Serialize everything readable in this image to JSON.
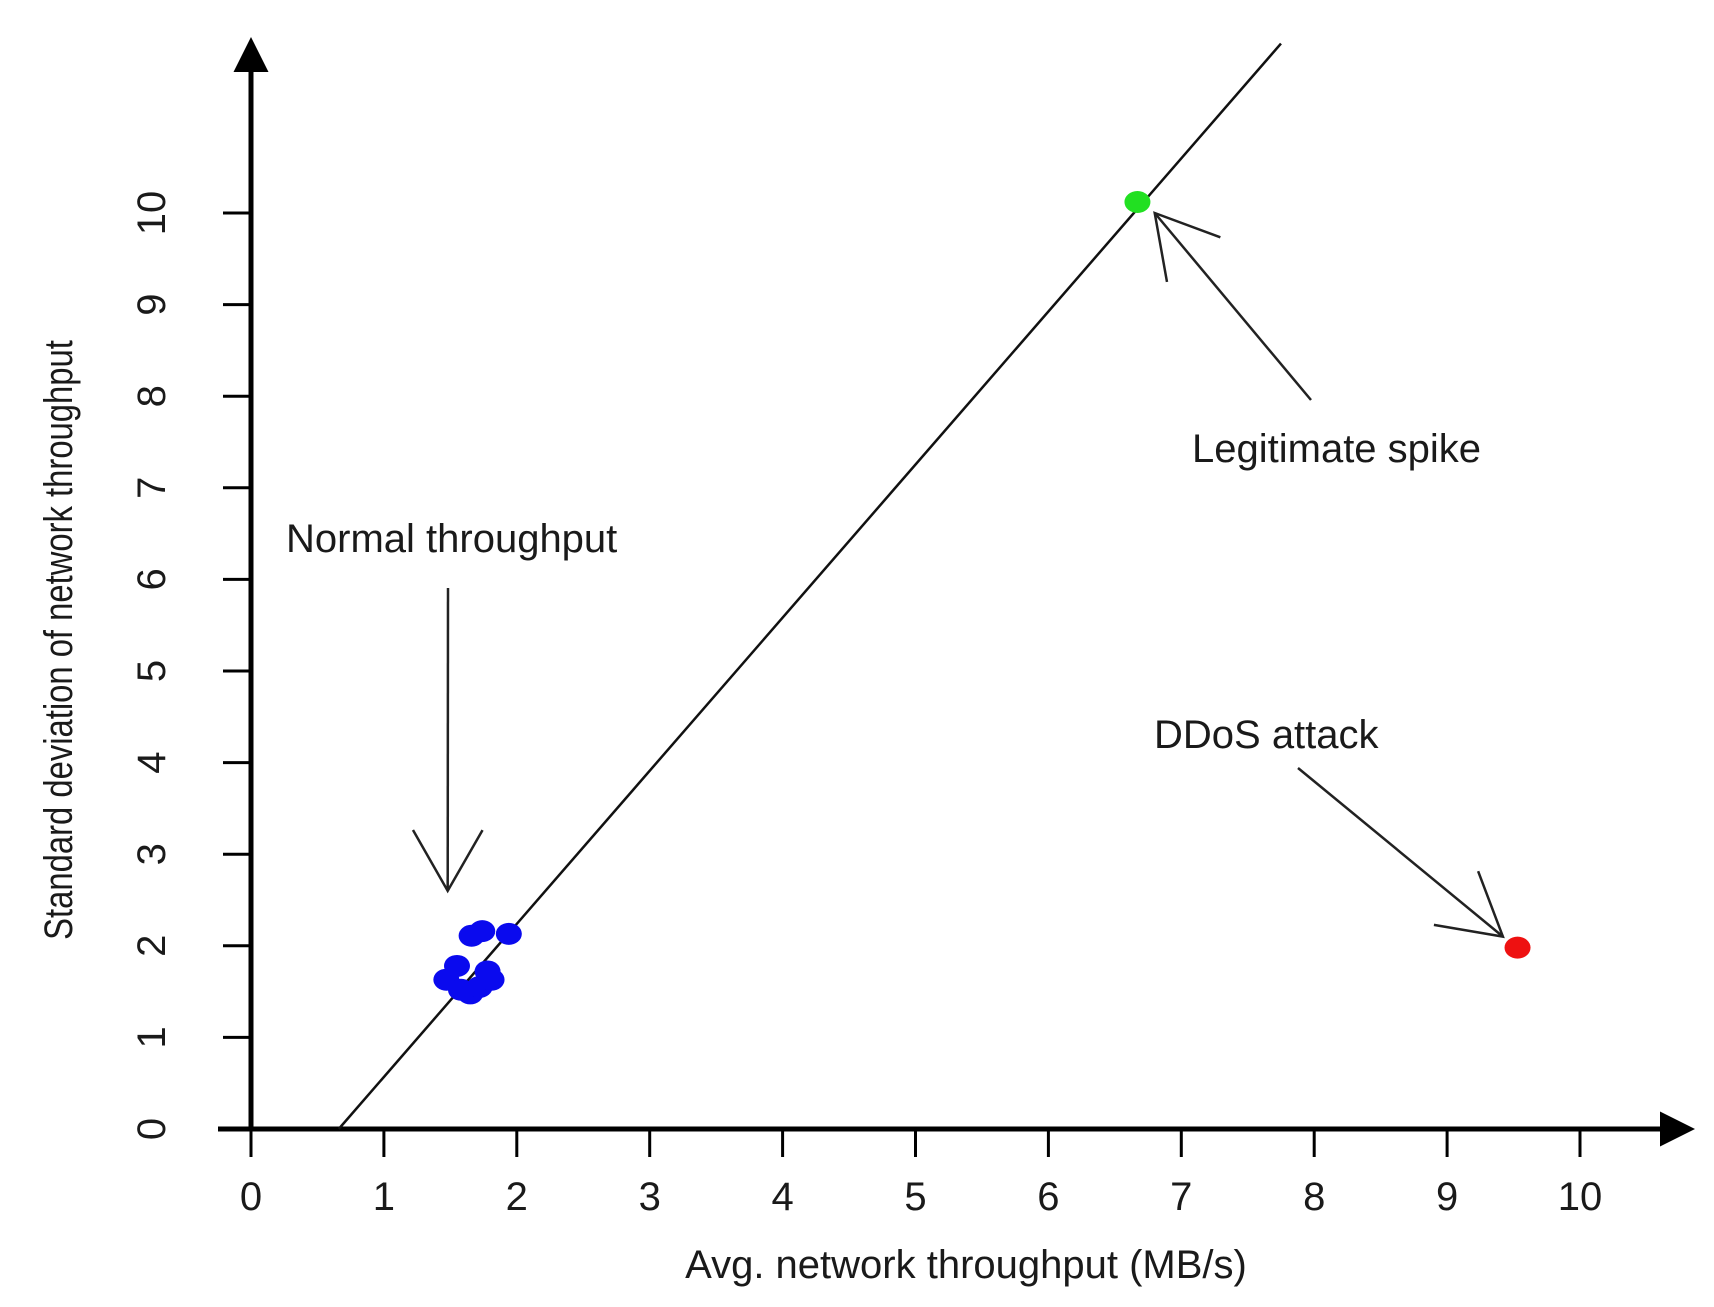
{
  "chart_data": {
    "type": "scatter",
    "title": "",
    "xlabel": "Avg. network throughput (MB/s)",
    "ylabel": "Standard deviation of network throughput",
    "xlim": [
      0,
      10
    ],
    "ylim": [
      0,
      10
    ],
    "x_ticks": [
      "0",
      "1",
      "2",
      "3",
      "4",
      "5",
      "6",
      "7",
      "8",
      "9",
      "10"
    ],
    "y_ticks": [
      "0",
      "1",
      "2",
      "3",
      "4",
      "5",
      "6",
      "7",
      "8",
      "9",
      "10"
    ],
    "grid": false,
    "legend": "none",
    "series": [
      {
        "color": "#0a0aee",
        "points": [
          {
            "x": 1.47,
            "y": 1.63
          },
          {
            "x": 1.55,
            "y": 1.78
          },
          {
            "x": 1.58,
            "y": 1.52
          },
          {
            "x": 1.65,
            "y": 1.48
          },
          {
            "x": 1.72,
            "y": 1.55
          },
          {
            "x": 1.78,
            "y": 1.72
          },
          {
            "x": 1.81,
            "y": 1.63
          },
          {
            "x": 1.66,
            "y": 2.11
          },
          {
            "x": 1.74,
            "y": 2.16
          },
          {
            "x": 1.94,
            "y": 2.13
          }
        ]
      },
      {
        "color": "#22e022",
        "points": [
          {
            "x": 6.67,
            "y": 10.12
          }
        ]
      },
      {
        "color": "#ee1111",
        "points": [
          {
            "x": 9.53,
            "y": 1.98
          }
        ]
      }
    ],
    "reference_line": {
      "x1": 0.66,
      "y1": 0,
      "x2": 7.75,
      "y2": 11.85,
      "color": "#111111"
    },
    "annotations": [
      {
        "text": "Normal throughput",
        "target": {
          "x": 1.48,
          "y": 2.6
        }
      },
      {
        "text": "Legitimate spike",
        "target": {
          "x": 6.8,
          "y": 10.0
        }
      },
      {
        "text": "DDoS attack",
        "target": {
          "x": 9.42,
          "y": 2.1
        }
      }
    ]
  }
}
